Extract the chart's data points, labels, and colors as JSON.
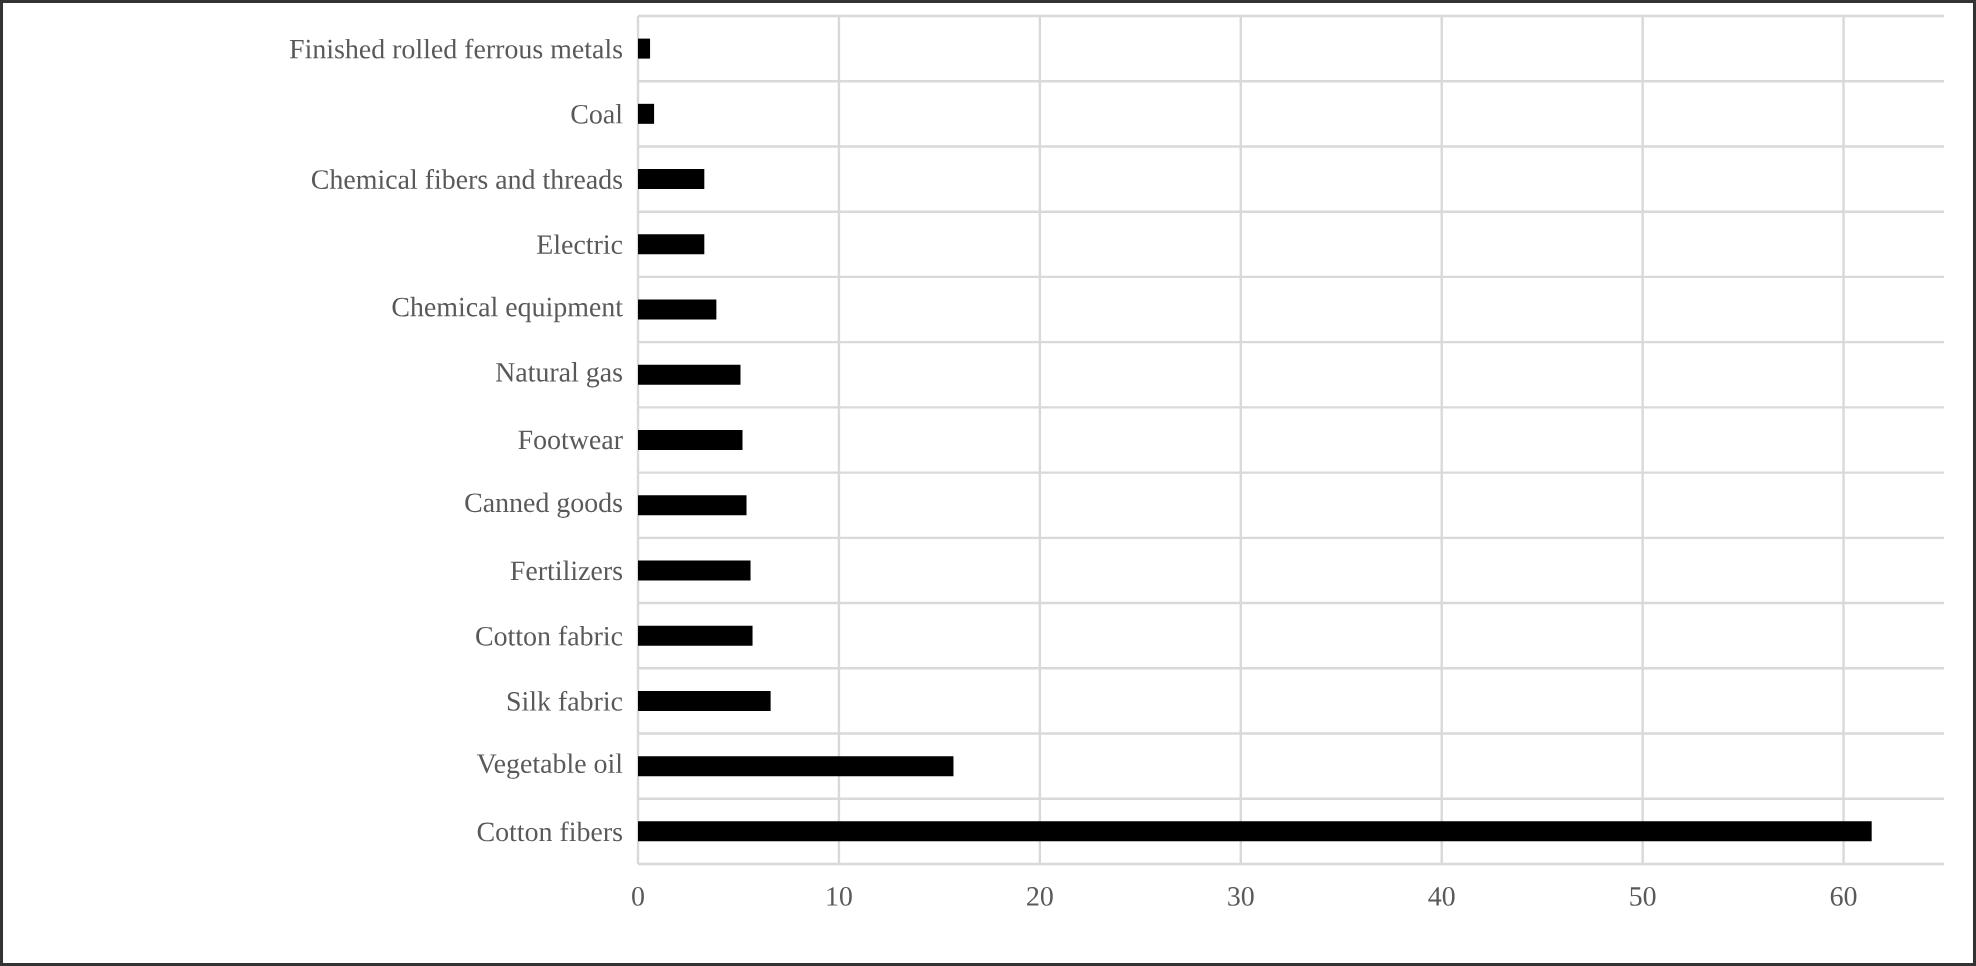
{
  "chart_data": {
    "type": "bar",
    "orientation": "horizontal",
    "categories": [
      "Finished rolled ferrous metals",
      "Coal",
      "Chemical fibers and threads",
      "Electric",
      "Chemical equipment",
      "Natural gas",
      "Footwear",
      "Canned goods",
      "Fertilizers",
      "Cotton fabric",
      "Silk fabric",
      "Vegetable oil",
      "Cotton fibers"
    ],
    "values": [
      0.6,
      0.8,
      3.3,
      3.3,
      3.9,
      5.1,
      5.2,
      5.4,
      5.6,
      5.7,
      6.6,
      15.7,
      61.4
    ],
    "color": "#000000",
    "xlim": [
      0,
      65
    ],
    "xticks": [
      0,
      10,
      20,
      30,
      40,
      50,
      60
    ],
    "grid": true
  }
}
